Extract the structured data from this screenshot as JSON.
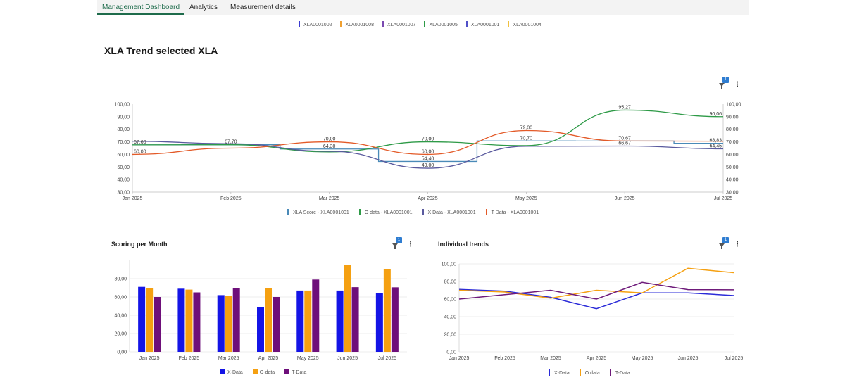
{
  "tabs": [
    {
      "label": "Management Dashboard",
      "active": true
    },
    {
      "label": "Analytics",
      "active": false
    },
    {
      "label": "Measurement details",
      "active": false
    }
  ],
  "top_legend": [
    {
      "label": "XLA0001002",
      "color": "#3b3bd1"
    },
    {
      "label": "XLA0001008",
      "color": "#f0a030"
    },
    {
      "label": "XLA0001007",
      "color": "#7a4ab0"
    },
    {
      "label": "XLA0001005",
      "color": "#2e9a47"
    },
    {
      "label": "XLA0001001",
      "color": "#5050c8"
    },
    {
      "label": "XLA0001004",
      "color": "#f0c040"
    }
  ],
  "main": {
    "title": "XLA Trend selected XLA",
    "filter_badge": "1",
    "menu_icon": "kebab-menu-icon"
  },
  "scoring": {
    "title": "Scoring per Month",
    "filter_badge": "1"
  },
  "trends": {
    "title": "Individual trends",
    "filter_badge": "1"
  },
  "chart_data": [
    {
      "type": "line",
      "title": "XLA Trend selected XLA",
      "categories": [
        "Jan 2025",
        "Feb 2025",
        "Mar 2025",
        "Apr 2025",
        "May 2025",
        "Jun 2025",
        "Jul 2025"
      ],
      "ylim": [
        30,
        100
      ],
      "yticks": [
        "30,00",
        "40,00",
        "50,00",
        "60,00",
        "70,00",
        "80,00",
        "90,00",
        "100,00"
      ],
      "grid": false,
      "legend_position": "bottom",
      "series": [
        {
          "name": "XLA Score - XLA0001001",
          "style": "step",
          "color": "#4a8ab8",
          "values": [
            67.6,
            67.7,
            64.3,
            54.4,
            70.7,
            70.67,
            68.83
          ]
        },
        {
          "name": "O data - XLA0001001",
          "style": "smooth",
          "color": "#2e9a47",
          "values": [
            67.6,
            67.7,
            62.0,
            70.0,
            67.0,
            95.27,
            90.06
          ]
        },
        {
          "name": "X Data - XLA0001001",
          "style": "smooth",
          "color": "#5a5a9e",
          "values": [
            70.5,
            68.5,
            62.5,
            49.0,
            66.5,
            66.67,
            64.45
          ]
        },
        {
          "name": "T Data - XLA0001001",
          "style": "smooth",
          "color": "#e35a28",
          "values": [
            60.0,
            65.0,
            70.0,
            60.0,
            79.0,
            70.67,
            70.5
          ]
        }
      ],
      "labels": [
        {
          "text": "67,60",
          "x": "Jan 2025",
          "y": 67.6
        },
        {
          "text": "60,00",
          "x": "Jan 2025",
          "y": 60.0
        },
        {
          "text": "67,70",
          "x": "Feb 2025",
          "y": 67.7
        },
        {
          "text": "70,00",
          "x": "Mar 2025",
          "y": 70.0
        },
        {
          "text": "64,30",
          "x": "Mar 2025",
          "y": 64.3
        },
        {
          "text": "70,00",
          "x": "Apr 2025",
          "y": 70.0
        },
        {
          "text": "60,00",
          "x": "Apr 2025",
          "y": 60.0
        },
        {
          "text": "54,40",
          "x": "Apr 2025",
          "y": 54.4
        },
        {
          "text": "49,00",
          "x": "Apr 2025",
          "y": 49.0
        },
        {
          "text": "79,00",
          "x": "May 2025",
          "y": 79.0
        },
        {
          "text": "70,70",
          "x": "May 2025",
          "y": 70.7
        },
        {
          "text": "95,27",
          "x": "Jun 2025",
          "y": 95.27
        },
        {
          "text": "70,67",
          "x": "Jun 2025",
          "y": 70.67
        },
        {
          "text": "66,67",
          "x": "Jun 2025",
          "y": 66.67
        },
        {
          "text": "90,06",
          "x": "Jul 2025",
          "y": 90.06
        },
        {
          "text": "68,83",
          "x": "Jul 2025",
          "y": 68.83
        },
        {
          "text": "64,45",
          "x": "Jul 2025",
          "y": 64.45
        }
      ]
    },
    {
      "type": "bar",
      "title": "Scoring per Month",
      "categories": [
        "Jan 2025",
        "Feb 2025",
        "Mar 2025",
        "Apr 2025",
        "May 2025",
        "Jun 2025",
        "Jul 2025"
      ],
      "ylim": [
        0,
        100
      ],
      "yticks": [
        "0,00",
        "20,00",
        "40,00",
        "60,00",
        "80,00"
      ],
      "grid": true,
      "legend_position": "bottom",
      "series": [
        {
          "name": "X-Data",
          "color": "#1414e6",
          "values": [
            71,
            69,
            62,
            49,
            67,
            67,
            64
          ]
        },
        {
          "name": "O-data",
          "color": "#f5a011",
          "values": [
            70,
            68,
            61,
            70,
            67,
            95,
            90
          ]
        },
        {
          "name": "T-Data",
          "color": "#6e0f7a",
          "values": [
            60,
            65,
            70,
            60,
            79,
            70.67,
            70.5
          ]
        }
      ]
    },
    {
      "type": "line",
      "title": "Individual trends",
      "categories": [
        "Jan 2025",
        "Feb 2025",
        "Mar 2025",
        "Apr 2025",
        "May 2025",
        "Jun 2025",
        "Jul 2025"
      ],
      "ylim": [
        0,
        100
      ],
      "yticks": [
        "0,00",
        "20,00",
        "40,00",
        "60,00",
        "80,00",
        "100,00"
      ],
      "grid": true,
      "legend_position": "bottom",
      "series": [
        {
          "name": "X-Data",
          "color": "#2a2ad8",
          "values": [
            71,
            69,
            62,
            49,
            67,
            67,
            64
          ]
        },
        {
          "name": "O data",
          "color": "#f5a011",
          "values": [
            70,
            68,
            61,
            70,
            67,
            95,
            90
          ]
        },
        {
          "name": "T-Data",
          "color": "#6e1a7a",
          "values": [
            60,
            65,
            70,
            60,
            79,
            70.67,
            70.5
          ]
        }
      ]
    }
  ]
}
